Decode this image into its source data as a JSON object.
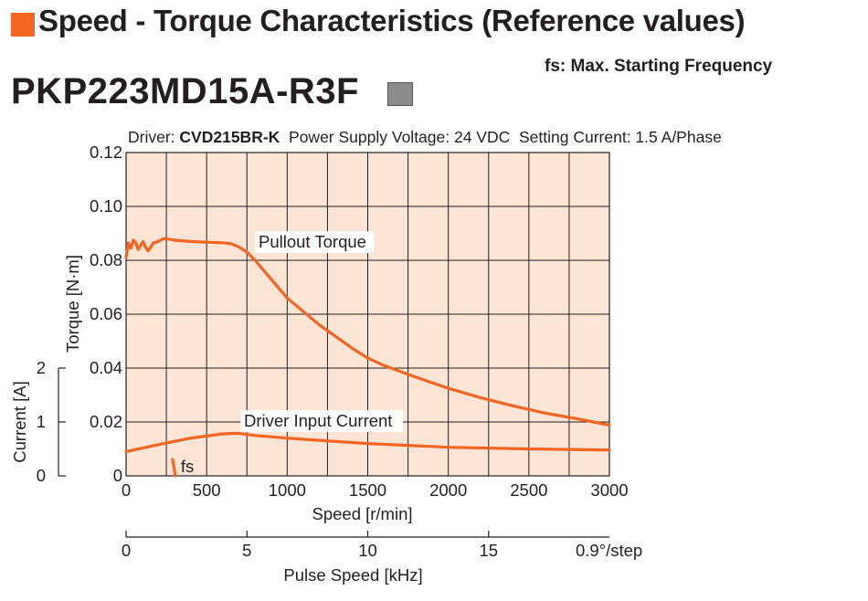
{
  "header": {
    "title": "Speed - Torque Characteristics (Reference values)",
    "fs_note": "fs: Max. Starting Frequency",
    "model": "PKP223MD15A-R3F"
  },
  "driver_info": {
    "driver_label": "Driver:",
    "driver_name": "CVD215BR-K",
    "voltage": "Power Supply Voltage: 24 VDC",
    "current": "Setting Current: 1.5 A/Phase"
  },
  "colors": {
    "curve": "#f26522",
    "plot_bg": "#fde5d6",
    "grid": "#231f20"
  },
  "chart_data": {
    "type": "line",
    "xlabel": "Speed [r/min]",
    "ylabel": "Torque [N·m]",
    "y2label": "Current [A]",
    "x2label": "Pulse Speed [kHz]",
    "x2_unit_note": "0.9°/step",
    "xlim": [
      0,
      3000
    ],
    "ylim": [
      0,
      0.12
    ],
    "y2lim": [
      0,
      2
    ],
    "x_ticks": [
      "0",
      "500",
      "1000",
      "1500",
      "2000",
      "2500",
      "3000"
    ],
    "y_ticks": [
      "0",
      "0.02",
      "0.04",
      "0.06",
      "0.08",
      "0.10",
      "0.12"
    ],
    "y2_ticks": [
      "0",
      "1",
      "2"
    ],
    "x2_ticks": [
      "0",
      "5",
      "10",
      "15"
    ],
    "grid": true,
    "series": [
      {
        "name": "Pullout Torque",
        "axis": "torque",
        "x": [
          0,
          15,
          30,
          45,
          60,
          75,
          90,
          105,
          120,
          135,
          150,
          170,
          200,
          230,
          250,
          300,
          400,
          500,
          600,
          650,
          700,
          750,
          800,
          900,
          1000,
          1200,
          1400,
          1500,
          1600,
          1800,
          2000,
          2200,
          2400,
          2600,
          2800,
          3000
        ],
        "y": [
          0.081,
          0.0865,
          0.0845,
          0.0875,
          0.0865,
          0.084,
          0.0855,
          0.087,
          0.085,
          0.0835,
          0.0845,
          0.0865,
          0.087,
          0.088,
          0.088,
          0.0875,
          0.087,
          0.0867,
          0.0865,
          0.0862,
          0.085,
          0.083,
          0.08,
          0.073,
          0.066,
          0.056,
          0.0475,
          0.0437,
          0.041,
          0.0366,
          0.0325,
          0.029,
          0.026,
          0.0233,
          0.0212,
          0.0188
        ]
      },
      {
        "name": "Driver Input Current",
        "axis": "current",
        "x": [
          0,
          200,
          400,
          600,
          700,
          800,
          1000,
          1200,
          1500,
          2000,
          2500,
          3000
        ],
        "y": [
          0.45,
          0.58,
          0.7,
          0.78,
          0.79,
          0.75,
          0.7,
          0.66,
          0.6,
          0.53,
          0.5,
          0.48
        ]
      }
    ],
    "annotations": {
      "pullout_label": "Pullout Torque",
      "current_label": "Driver Input Current",
      "fs_label": "fs",
      "fs_speed": 300
    }
  }
}
